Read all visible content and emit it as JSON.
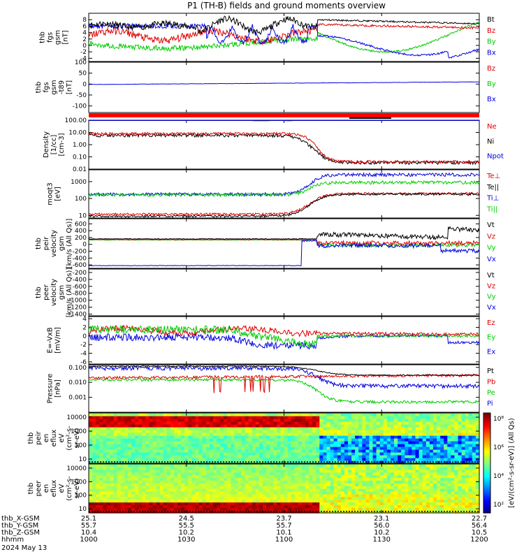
{
  "title": "P1 (TH-B) fields and ground moments overview",
  "date_label": "2024 May 13",
  "colors": {
    "black": "#000000",
    "red": "#e00000",
    "green": "#00cc00",
    "blue": "#0000e0"
  },
  "chart_data": [
    {
      "id": "fgs",
      "type": "line",
      "ylabel": [
        "thb",
        "fgs",
        "gsm",
        "[nT]"
      ],
      "ylim": [
        -5,
        10
      ],
      "yticks": [
        "8",
        "6",
        "4",
        "2",
        "0",
        "-2",
        "-4"
      ],
      "ytick_values": [
        8,
        6,
        4,
        2,
        0,
        -2,
        -4
      ],
      "series": [
        {
          "name": "Bt",
          "color": "black"
        },
        {
          "name": "Bz",
          "color": "red"
        },
        {
          "name": "By",
          "color": "green"
        },
        {
          "name": "Bx",
          "color": "blue"
        }
      ]
    },
    {
      "id": "fgs_t89",
      "type": "line",
      "ylabel": [
        "thb",
        "fgs",
        "gsm",
        "-t89",
        "[nT]"
      ],
      "ylim": [
        -130,
        100
      ],
      "yticks": [
        "100",
        "50",
        "0",
        "-50",
        "-100"
      ],
      "ytick_values": [
        100,
        50,
        0,
        -50,
        -100
      ],
      "series": [
        {
          "name": "Bz",
          "color": "red"
        },
        {
          "name": "By",
          "color": "green"
        },
        {
          "name": "Bx",
          "color": "blue"
        }
      ]
    },
    {
      "id": "density",
      "type": "line",
      "ylabel": [
        "Density",
        "[1/cc]",
        "[cm-3]"
      ],
      "log": true,
      "ylim": [
        0.01,
        100
      ],
      "yticks": [
        "100.00",
        "10.00",
        "1.00",
        "0.10",
        "0.01"
      ],
      "ytick_values": [
        100,
        10,
        1,
        0.1,
        0.01
      ],
      "series": [
        {
          "name": "Ne",
          "color": "red"
        },
        {
          "name": "Ni",
          "color": "black"
        },
        {
          "name": "Npot",
          "color": "blue"
        }
      ]
    },
    {
      "id": "temp",
      "type": "line",
      "ylabel": [
        "moqt3",
        "[eV]"
      ],
      "log": true,
      "ylim": [
        7,
        5000
      ],
      "yticks": [
        "1000",
        "100",
        "10"
      ],
      "ytick_values": [
        1000,
        100,
        10
      ],
      "series": [
        {
          "name": "Te⊥",
          "color": "red"
        },
        {
          "name": "Te||",
          "color": "black"
        },
        {
          "name": "Ti⊥",
          "color": "blue"
        },
        {
          "name": "Ti||",
          "color": "green"
        }
      ]
    },
    {
      "id": "peir_v",
      "type": "line",
      "ylabel": [
        "thb",
        "peir",
        "velocity",
        "gsm",
        "[km/s (All Qs)]"
      ],
      "ylim": [
        -700,
        750
      ],
      "yticks": [
        "600",
        "400",
        "200",
        "0",
        "-200",
        "-400",
        "-600"
      ],
      "ytick_values": [
        600,
        400,
        200,
        0,
        -200,
        -400,
        -600
      ],
      "series": [
        {
          "name": "Vt",
          "color": "black"
        },
        {
          "name": "Vz",
          "color": "red"
        },
        {
          "name": "Vy",
          "color": "green"
        },
        {
          "name": "Vx",
          "color": "blue"
        }
      ]
    },
    {
      "id": "peer_v",
      "type": "line",
      "ylabel": [
        "thb",
        "peer",
        "velocity",
        "gsm",
        "[km/s (All Qs)]"
      ],
      "ylim": [
        -1450,
        -100
      ],
      "yticks": [
        "-200",
        "-400",
        "-600",
        "-800",
        "-1000",
        "-1200",
        "-1400"
      ],
      "ytick_values": [
        -200,
        -400,
        -600,
        -800,
        -1000,
        -1200,
        -1400
      ],
      "series": [
        {
          "name": "Vt",
          "color": "black"
        },
        {
          "name": "Vz",
          "color": "red"
        },
        {
          "name": "Vy",
          "color": "green"
        },
        {
          "name": "Vx",
          "color": "blue"
        }
      ]
    },
    {
      "id": "efield",
      "type": "line",
      "ylabel": [
        "E=-VxB",
        "[mV/m]"
      ],
      "ylim": [
        -6.5,
        4.5
      ],
      "yticks": [
        "4",
        "2",
        "0",
        "-2",
        "-4",
        "-6"
      ],
      "ytick_values": [
        4,
        2,
        0,
        -2,
        -4,
        -6
      ],
      "series": [
        {
          "name": "Ez",
          "color": "red"
        },
        {
          "name": "Ey",
          "color": "green"
        },
        {
          "name": "Ex",
          "color": "blue"
        }
      ]
    },
    {
      "id": "pressure",
      "type": "line",
      "ylabel": [
        "Pressure",
        "[nPa]"
      ],
      "log": true,
      "ylim": [
        0.0001,
        0.15
      ],
      "yticks": [
        "0.100",
        "0.010",
        "0.001"
      ],
      "ytick_values": [
        0.1,
        0.01,
        0.001
      ],
      "series": [
        {
          "name": "Pt",
          "color": "black"
        },
        {
          "name": "Pb",
          "color": "red"
        },
        {
          "name": "Pe",
          "color": "green"
        },
        {
          "name": "Pi",
          "color": "blue"
        }
      ]
    },
    {
      "id": "peir_spec",
      "type": "heatmap",
      "ylabel": [
        "thb",
        "peir",
        "en",
        "eflux",
        "eV",
        "(cm²-s-",
        "sr-eV)"
      ],
      "log": true,
      "ylim": [
        5,
        20000
      ],
      "yticks": [
        "10000",
        "1000",
        "100",
        "10"
      ],
      "ytick_values": [
        10000,
        1000,
        100,
        10
      ]
    },
    {
      "id": "peer_spec",
      "type": "heatmap",
      "ylabel": [
        "thb",
        "peer",
        "en",
        "eflux",
        "eV",
        "(cm²-s-",
        "sr-eV)"
      ],
      "log": true,
      "ylim": [
        5,
        20000
      ],
      "yticks": [
        "10000",
        "1000",
        "100",
        "10"
      ],
      "ytick_values": [
        10000,
        1000,
        100,
        10
      ]
    }
  ],
  "colorbar": {
    "label": "[eV/(cm²-s-sr-eV)] (All Qs)",
    "ticks": [
      "10⁸",
      "10⁶",
      "10⁴",
      "10²"
    ]
  },
  "xaxis": {
    "row_labels": [
      "thb_X-GSM",
      "thb_Y-GSM",
      "thb_Z-GSM",
      "hhmm"
    ],
    "columns": [
      {
        "x": "25.1",
        "y": "55.7",
        "z": "10.4",
        "t": "1000"
      },
      {
        "x": "24.5",
        "y": "55.5",
        "z": "10.2",
        "t": "1030"
      },
      {
        "x": "23.7",
        "y": "55.7",
        "z": "10.1",
        "t": "1100"
      },
      {
        "x": "23.1",
        "y": "56.0",
        "z": "10.2",
        "t": "1130"
      },
      {
        "x": "22.7",
        "y": "56.4",
        "z": "10.5",
        "t": "1200"
      }
    ]
  }
}
